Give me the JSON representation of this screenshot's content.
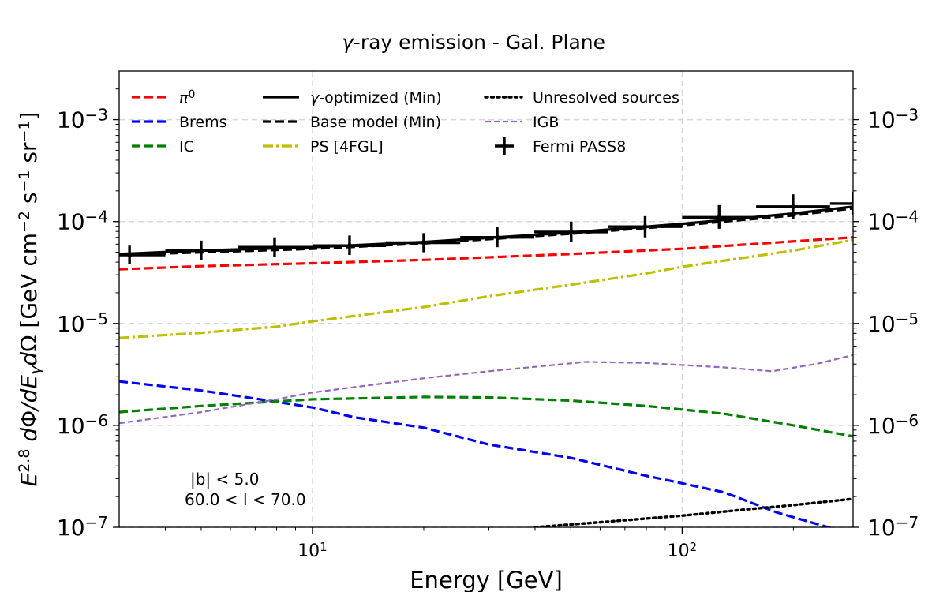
{
  "chart_data": {
    "type": "line",
    "title": "γ-ray emission - Gal. Plane",
    "xlabel": "Energy [GeV]",
    "ylabel": "E^2.8 dΦ/dE_γ dΩ [GeV cm^-2 s^-1 sr^-1]",
    "xscale": "log",
    "yscale": "log",
    "xlim": [
      3,
      290
    ],
    "ylim": [
      1e-07,
      0.003
    ],
    "grid": true,
    "legend_position": "top",
    "xticks": [
      {
        "value": 10,
        "label": "10",
        "exp": "1"
      },
      {
        "value": 100,
        "label": "10",
        "exp": "2"
      }
    ],
    "yticks": [
      {
        "value": 1e-07,
        "label": "10",
        "exp": "−7"
      },
      {
        "value": 1e-06,
        "label": "10",
        "exp": "−6"
      },
      {
        "value": 1e-05,
        "label": "10",
        "exp": "−5"
      },
      {
        "value": 0.0001,
        "label": "10",
        "exp": "−4"
      },
      {
        "value": 0.001,
        "label": "10",
        "exp": "−3"
      }
    ],
    "annotations": [
      "|b| < 5.0",
      "60.0 < l < 70.0"
    ],
    "series": [
      {
        "name": "π0",
        "label_base": "π",
        "label_sup": "0",
        "color": "#ff0000",
        "style": "dashed",
        "x": [
          3,
          5,
          10,
          20,
          50,
          100,
          290
        ],
        "y": [
          3.4e-05,
          3.65e-05,
          3.9e-05,
          4.2e-05,
          4.8e-05,
          5.4e-05,
          7e-05
        ]
      },
      {
        "name": "Brems",
        "color": "#0000ff",
        "style": "dashed",
        "x": [
          3,
          5,
          8,
          10,
          13,
          20,
          30,
          50,
          80,
          100,
          130,
          180,
          290
        ],
        "y": [
          2.7e-06,
          2.2e-06,
          1.7e-06,
          1.5e-06,
          1.2e-06,
          9.5e-07,
          6.5e-07,
          4.8e-07,
          3.2e-07,
          2.7e-07,
          2.2e-07,
          1.4e-07,
          8.5e-08
        ]
      },
      {
        "name": "IC",
        "color": "#008000",
        "style": "dashed",
        "x": [
          3,
          5,
          10,
          20,
          30,
          50,
          80,
          130,
          200,
          290
        ],
        "y": [
          1.35e-06,
          1.55e-06,
          1.8e-06,
          1.9e-06,
          1.88e-06,
          1.75e-06,
          1.55e-06,
          1.3e-06,
          1e-06,
          7.8e-07
        ]
      },
      {
        "name": "γ-optimized (Min)",
        "color": "#000000",
        "style": "solid",
        "x": [
          3,
          5,
          10,
          20,
          50,
          100,
          200,
          290
        ],
        "y": [
          4.8e-05,
          5.2e-05,
          5.6e-05,
          6.3e-05,
          7.8e-05,
          9.5e-05,
          0.00012,
          0.00014
        ]
      },
      {
        "name": "Base model (Min)",
        "color": "#000000",
        "style": "dashed",
        "x": [
          3,
          5,
          10,
          20,
          50,
          100,
          200,
          290
        ],
        "y": [
          4.7e-05,
          5e-05,
          5.4e-05,
          6.1e-05,
          7.6e-05,
          9.2e-05,
          0.000115,
          0.000135
        ]
      },
      {
        "name": "PS [4FGL]",
        "color": "#bfbf00",
        "style": "dashdot",
        "x": [
          3,
          5,
          8,
          10,
          20,
          30,
          50,
          80,
          100,
          200,
          290
        ],
        "y": [
          7.2e-06,
          8.1e-06,
          9.3e-06,
          1.05e-05,
          1.45e-05,
          1.85e-05,
          2.4e-05,
          3.1e-05,
          3.6e-05,
          5.2e-05,
          6.6e-05
        ]
      },
      {
        "name": "Unresolved sources",
        "color": "#000000",
        "style": "dotted",
        "x": [
          40,
          60,
          100,
          150,
          200,
          290
        ],
        "y": [
          1e-07,
          1.12e-07,
          1.3e-07,
          1.5e-07,
          1.65e-07,
          1.9e-07
        ]
      },
      {
        "name": "IGB",
        "color": "#9467bd",
        "style": "dashed-thin",
        "x": [
          3,
          5,
          8,
          10,
          20,
          30,
          55,
          80,
          130,
          175,
          230,
          290
        ],
        "y": [
          1.05e-06,
          1.35e-06,
          1.8e-06,
          2.1e-06,
          2.9e-06,
          3.4e-06,
          4.2e-06,
          4.1e-06,
          3.7e-06,
          3.4e-06,
          4e-06,
          4.9e-06
        ]
      },
      {
        "name": "Fermi PASS8",
        "color": "#000000",
        "style": "errorbar",
        "points": [
          {
            "x": 3.2,
            "xlo": 3.0,
            "xhi": 4.0,
            "y": 4.7e-05,
            "ylo": 3.8e-05,
            "yhi": 5.8e-05
          },
          {
            "x": 5.0,
            "xlo": 4.0,
            "xhi": 6.3,
            "y": 5.2e-05,
            "ylo": 4.2e-05,
            "yhi": 6.5e-05
          },
          {
            "x": 7.9,
            "xlo": 6.3,
            "xhi": 10.0,
            "y": 5.6e-05,
            "ylo": 4.5e-05,
            "yhi": 7e-05
          },
          {
            "x": 12.6,
            "xlo": 10.0,
            "xhi": 15.8,
            "y": 5.8e-05,
            "ylo": 4.7e-05,
            "yhi": 7.3e-05
          },
          {
            "x": 20.0,
            "xlo": 15.8,
            "xhi": 25.1,
            "y": 6.2e-05,
            "ylo": 5e-05,
            "yhi": 7.7e-05
          },
          {
            "x": 31.6,
            "xlo": 25.1,
            "xhi": 39.8,
            "y": 7e-05,
            "ylo": 5.6e-05,
            "yhi": 8.8e-05
          },
          {
            "x": 50.1,
            "xlo": 39.8,
            "xhi": 63.1,
            "y": 7.9e-05,
            "ylo": 6.3e-05,
            "yhi": 0.0001
          },
          {
            "x": 79.4,
            "xlo": 63.1,
            "xhi": 100.0,
            "y": 8.9e-05,
            "ylo": 7e-05,
            "yhi": 0.000113
          },
          {
            "x": 125.9,
            "xlo": 100.0,
            "xhi": 158.5,
            "y": 0.00011,
            "ylo": 8.5e-05,
            "yhi": 0.000145
          },
          {
            "x": 199.5,
            "xlo": 158.5,
            "xhi": 251.2,
            "y": 0.00014,
            "ylo": 0.000105,
            "yhi": 0.000185
          },
          {
            "x": 290.0,
            "xlo": 251.2,
            "xhi": 320.0,
            "y": 0.00015,
            "ylo": 0.000115,
            "yhi": 0.000195
          }
        ]
      }
    ]
  }
}
